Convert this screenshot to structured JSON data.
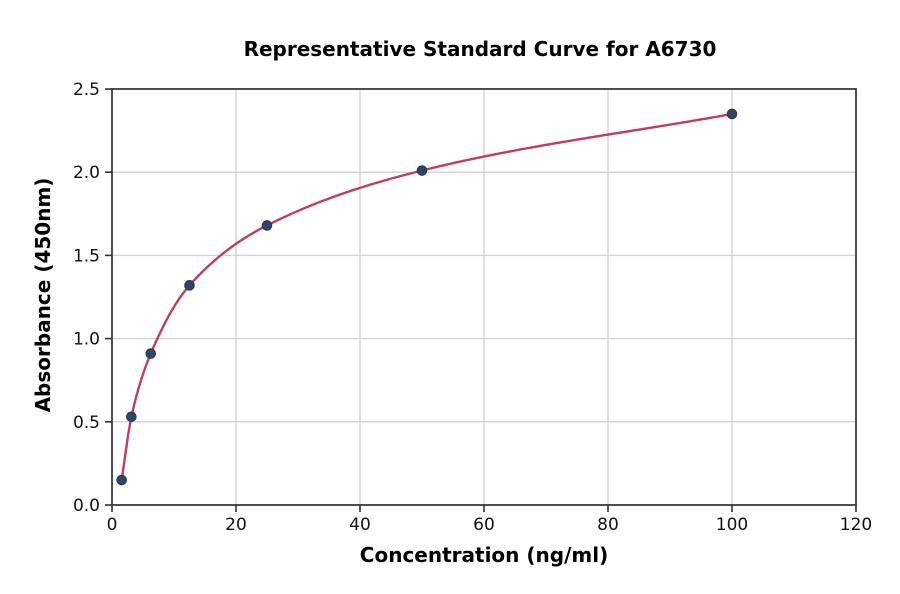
{
  "figure": {
    "background": "#ffffff"
  },
  "chart_data": {
    "type": "line",
    "title": "Representative Standard Curve for A6730",
    "xlabel": "Concentration (ng/ml)",
    "ylabel": "Absorbance (450nm)",
    "x": [
      1.56,
      3.12,
      6.25,
      12.5,
      25,
      50,
      100
    ],
    "y": [
      0.15,
      0.53,
      0.91,
      1.32,
      1.68,
      2.01,
      2.35
    ],
    "xlim": [
      0,
      120
    ],
    "ylim": [
      0,
      2.5
    ],
    "xticks": [
      0,
      20,
      40,
      60,
      80,
      100,
      120
    ],
    "xtick_labels": [
      "0",
      "20",
      "40",
      "60",
      "80",
      "100",
      "120"
    ],
    "yticks": [
      0,
      0.5,
      1,
      1.5,
      2,
      2.5
    ],
    "ytick_labels": [
      "0.0",
      "0.5",
      "1.0",
      "1.5",
      "2.0",
      "2.5"
    ],
    "grid": true,
    "marker_shape": "circle",
    "colors": {
      "line": "#c23c60",
      "marker": "#2e4569",
      "marker_edge": "#25395a",
      "grid": "#d3d3d3",
      "spine": "#3c3c3c",
      "tick": "#333333",
      "text": "#000000"
    }
  }
}
